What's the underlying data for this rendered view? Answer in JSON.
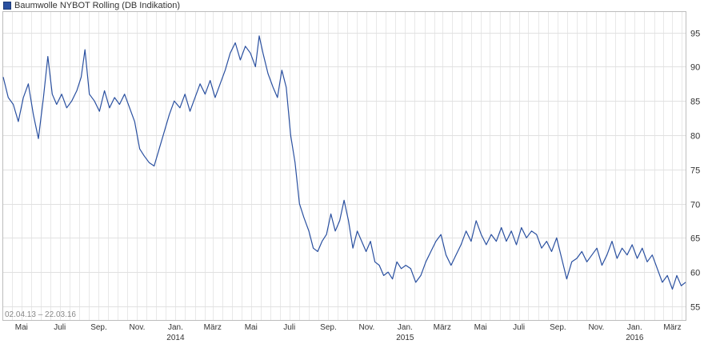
{
  "legend": {
    "label": "Baumwolle NYBOT Rolling (DB Indikation)",
    "color": "#2a50a0"
  },
  "range_label": "02.04.13 – 22.03.16",
  "chart_data": {
    "type": "line",
    "title": "",
    "xlabel": "",
    "ylabel": "",
    "ylim": [
      53,
      98
    ],
    "grid": true,
    "x_ticks": [
      {
        "label": "Mai",
        "year": ""
      },
      {
        "label": "Juli",
        "year": ""
      },
      {
        "label": "Sep.",
        "year": ""
      },
      {
        "label": "Nov.",
        "year": ""
      },
      {
        "label": "Jan.",
        "year": "2014"
      },
      {
        "label": "März",
        "year": ""
      },
      {
        "label": "Mai",
        "year": ""
      },
      {
        "label": "Juli",
        "year": ""
      },
      {
        "label": "Sep.",
        "year": ""
      },
      {
        "label": "Nov.",
        "year": ""
      },
      {
        "label": "Jan.",
        "year": "2015"
      },
      {
        "label": "März",
        "year": ""
      },
      {
        "label": "Mai",
        "year": ""
      },
      {
        "label": "Juli",
        "year": ""
      },
      {
        "label": "Sep.",
        "year": ""
      },
      {
        "label": "Nov.",
        "year": ""
      },
      {
        "label": "Jan.",
        "year": "2016"
      },
      {
        "label": "März",
        "year": ""
      }
    ],
    "y_ticks": [
      55,
      60,
      65,
      70,
      75,
      80,
      85,
      90,
      95
    ],
    "series": [
      {
        "name": "Baumwolle NYBOT Rolling (DB Indikation)",
        "color": "#2a50a0",
        "points": [
          [
            "2013-04-02",
            88.5
          ],
          [
            "2013-04-10",
            85.5
          ],
          [
            "2013-04-18",
            84.5
          ],
          [
            "2013-04-26",
            82.0
          ],
          [
            "2013-05-04",
            85.5
          ],
          [
            "2013-05-12",
            87.5
          ],
          [
            "2013-05-20",
            83.0
          ],
          [
            "2013-05-28",
            79.5
          ],
          [
            "2013-06-05",
            85.5
          ],
          [
            "2013-06-12",
            91.5
          ],
          [
            "2013-06-19",
            86.0
          ],
          [
            "2013-06-26",
            84.5
          ],
          [
            "2013-07-04",
            86.0
          ],
          [
            "2013-07-12",
            84.0
          ],
          [
            "2013-07-20",
            85.0
          ],
          [
            "2013-07-28",
            86.5
          ],
          [
            "2013-08-04",
            88.5
          ],
          [
            "2013-08-10",
            92.5
          ],
          [
            "2013-08-17",
            86.0
          ],
          [
            "2013-08-25",
            85.0
          ],
          [
            "2013-09-02",
            83.5
          ],
          [
            "2013-09-10",
            86.5
          ],
          [
            "2013-09-18",
            84.0
          ],
          [
            "2013-09-26",
            85.5
          ],
          [
            "2013-10-04",
            84.5
          ],
          [
            "2013-10-12",
            86.0
          ],
          [
            "2013-10-20",
            84.0
          ],
          [
            "2013-10-28",
            82.0
          ],
          [
            "2013-11-05",
            78.0
          ],
          [
            "2013-11-12",
            77.0
          ],
          [
            "2013-11-20",
            76.0
          ],
          [
            "2013-11-28",
            75.5
          ],
          [
            "2013-12-06",
            78.0
          ],
          [
            "2013-12-14",
            80.5
          ],
          [
            "2013-12-22",
            83.0
          ],
          [
            "2013-12-30",
            85.0
          ],
          [
            "2014-01-08",
            84.0
          ],
          [
            "2014-01-16",
            86.0
          ],
          [
            "2014-01-24",
            83.5
          ],
          [
            "2014-02-01",
            85.5
          ],
          [
            "2014-02-09",
            87.5
          ],
          [
            "2014-02-17",
            86.0
          ],
          [
            "2014-02-25",
            88.0
          ],
          [
            "2014-03-05",
            85.5
          ],
          [
            "2014-03-13",
            87.5
          ],
          [
            "2014-03-21",
            89.5
          ],
          [
            "2014-03-29",
            92.0
          ],
          [
            "2014-04-06",
            93.5
          ],
          [
            "2014-04-14",
            91.0
          ],
          [
            "2014-04-22",
            93.0
          ],
          [
            "2014-04-30",
            92.0
          ],
          [
            "2014-05-08",
            90.0
          ],
          [
            "2014-05-14",
            94.5
          ],
          [
            "2014-05-20",
            92.0
          ],
          [
            "2014-05-28",
            89.0
          ],
          [
            "2014-06-05",
            87.0
          ],
          [
            "2014-06-12",
            85.5
          ],
          [
            "2014-06-19",
            89.5
          ],
          [
            "2014-06-26",
            87.0
          ],
          [
            "2014-07-03",
            80.0
          ],
          [
            "2014-07-10",
            76.0
          ],
          [
            "2014-07-17",
            70.0
          ],
          [
            "2014-07-24",
            68.0
          ],
          [
            "2014-08-01",
            66.0
          ],
          [
            "2014-08-08",
            63.5
          ],
          [
            "2014-08-15",
            63.0
          ],
          [
            "2014-08-22",
            64.5
          ],
          [
            "2014-08-29",
            65.5
          ],
          [
            "2014-09-05",
            68.5
          ],
          [
            "2014-09-12",
            66.0
          ],
          [
            "2014-09-19",
            67.5
          ],
          [
            "2014-09-26",
            70.5
          ],
          [
            "2014-10-03",
            67.5
          ],
          [
            "2014-10-10",
            63.5
          ],
          [
            "2014-10-17",
            66.0
          ],
          [
            "2014-10-24",
            64.5
          ],
          [
            "2014-10-31",
            63.0
          ],
          [
            "2014-11-07",
            64.5
          ],
          [
            "2014-11-14",
            61.5
          ],
          [
            "2014-11-21",
            61.0
          ],
          [
            "2014-11-28",
            59.5
          ],
          [
            "2014-12-05",
            60.0
          ],
          [
            "2014-12-12",
            59.0
          ],
          [
            "2014-12-19",
            61.5
          ],
          [
            "2014-12-26",
            60.5
          ],
          [
            "2015-01-02",
            61.0
          ],
          [
            "2015-01-10",
            60.5
          ],
          [
            "2015-01-18",
            58.5
          ],
          [
            "2015-01-26",
            59.5
          ],
          [
            "2015-02-03",
            61.5
          ],
          [
            "2015-02-11",
            63.0
          ],
          [
            "2015-02-19",
            64.5
          ],
          [
            "2015-02-27",
            65.5
          ],
          [
            "2015-03-07",
            62.5
          ],
          [
            "2015-03-15",
            61.0
          ],
          [
            "2015-03-23",
            62.5
          ],
          [
            "2015-03-31",
            64.0
          ],
          [
            "2015-04-08",
            66.0
          ],
          [
            "2015-04-16",
            64.5
          ],
          [
            "2015-04-24",
            67.5
          ],
          [
            "2015-05-02",
            65.5
          ],
          [
            "2015-05-10",
            64.0
          ],
          [
            "2015-05-18",
            65.5
          ],
          [
            "2015-05-26",
            64.5
          ],
          [
            "2015-06-03",
            66.5
          ],
          [
            "2015-06-11",
            64.5
          ],
          [
            "2015-06-19",
            66.0
          ],
          [
            "2015-06-27",
            64.0
          ],
          [
            "2015-07-05",
            66.5
          ],
          [
            "2015-07-13",
            65.0
          ],
          [
            "2015-07-21",
            66.0
          ],
          [
            "2015-07-29",
            65.5
          ],
          [
            "2015-08-06",
            63.5
          ],
          [
            "2015-08-14",
            64.5
          ],
          [
            "2015-08-22",
            63.0
          ],
          [
            "2015-08-30",
            65.0
          ],
          [
            "2015-09-07",
            62.0
          ],
          [
            "2015-09-15",
            59.0
          ],
          [
            "2015-09-23",
            61.5
          ],
          [
            "2015-10-01",
            62.0
          ],
          [
            "2015-10-09",
            63.0
          ],
          [
            "2015-10-17",
            61.5
          ],
          [
            "2015-10-25",
            62.5
          ],
          [
            "2015-11-02",
            63.5
          ],
          [
            "2015-11-10",
            61.0
          ],
          [
            "2015-11-18",
            62.5
          ],
          [
            "2015-11-26",
            64.5
          ],
          [
            "2015-12-04",
            62.0
          ],
          [
            "2015-12-12",
            63.5
          ],
          [
            "2015-12-20",
            62.5
          ],
          [
            "2015-12-28",
            64.0
          ],
          [
            "2016-01-05",
            62.0
          ],
          [
            "2016-01-13",
            63.5
          ],
          [
            "2016-01-21",
            61.5
          ],
          [
            "2016-01-29",
            62.5
          ],
          [
            "2016-02-06",
            60.5
          ],
          [
            "2016-02-14",
            58.5
          ],
          [
            "2016-02-22",
            59.5
          ],
          [
            "2016-03-01",
            57.5
          ],
          [
            "2016-03-08",
            59.5
          ],
          [
            "2016-03-15",
            58.0
          ],
          [
            "2016-03-22",
            58.5
          ]
        ]
      }
    ]
  }
}
